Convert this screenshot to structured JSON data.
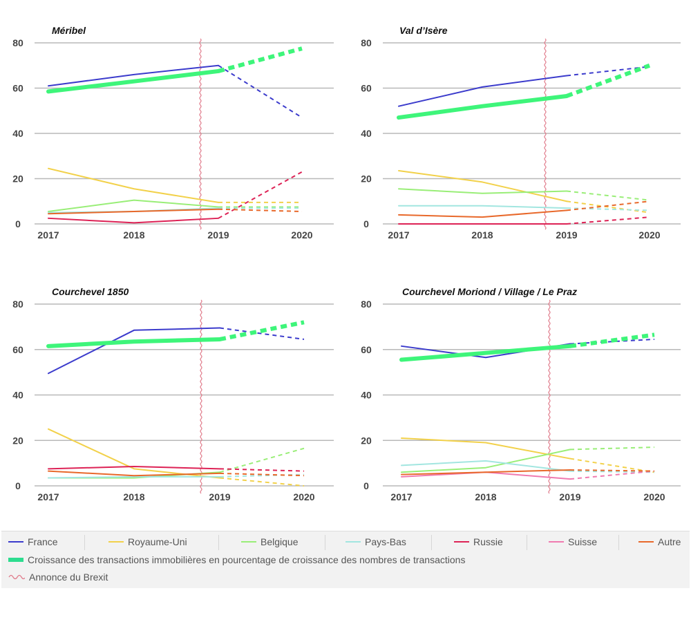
{
  "legend": {
    "series": [
      {
        "label": "France",
        "color": "#3b3bcc"
      },
      {
        "label": "Royaume-Uni",
        "color": "#f2d14a"
      },
      {
        "label": "Belgique",
        "color": "#99ee77"
      },
      {
        "label": "Pays-Bas",
        "color": "#a2e6e0"
      },
      {
        "label": "Russie",
        "color": "#dd2255"
      },
      {
        "label": "Suisse",
        "color": "#f07ab0"
      },
      {
        "label": "Autre",
        "color": "#e8682a"
      }
    ],
    "growth_label": "Croissance des transactions immobilières en pourcentage de croissance des nombres de transactions",
    "growth_color": "#3ef57a",
    "brexit_label": "Annonce du Brexit",
    "brexit_color": "#e07a8a"
  },
  "chart_data": [
    {
      "type": "line",
      "title": "Méribel",
      "x": [
        "2017",
        "2018",
        "2019",
        "2020"
      ],
      "ylim": [
        0,
        80
      ],
      "yticks": [
        0,
        20,
        40,
        60,
        80
      ],
      "grid": true,
      "projected_from": "2019",
      "brexit_marker": "between 2018 and 2019",
      "series": [
        {
          "name": "France",
          "values": [
            61,
            66,
            70,
            47
          ]
        },
        {
          "name": "Royaume-Uni",
          "values": [
            24.5,
            15.5,
            9.5,
            9.5
          ]
        },
        {
          "name": "Belgique",
          "values": [
            5.5,
            10.5,
            7.5,
            7.5
          ]
        },
        {
          "name": "Pays-Bas",
          "values": [
            5,
            5.5,
            7,
            7
          ]
        },
        {
          "name": "Russie",
          "values": [
            2.5,
            0.5,
            2.5,
            23
          ]
        },
        {
          "name": "Autre",
          "values": [
            4.5,
            5.5,
            6.5,
            5.5
          ]
        },
        {
          "name": "Croissance des transactions immobilières en pourcentage de croissance des nombres de transactions",
          "values": [
            58.5,
            63,
            67.5,
            77.5
          ]
        }
      ]
    },
    {
      "type": "line",
      "title": "Val d’Isère",
      "x": [
        "2017",
        "2018",
        "2019",
        "2020"
      ],
      "ylim": [
        0,
        80
      ],
      "yticks": [
        0,
        20,
        40,
        60,
        80
      ],
      "grid": true,
      "projected_from": "2019",
      "brexit_marker": "between 2018 and 2019",
      "series": [
        {
          "name": "France",
          "values": [
            52,
            60.5,
            65.5,
            69.5
          ]
        },
        {
          "name": "Royaume-Uni",
          "values": [
            23.5,
            18.5,
            10,
            5
          ]
        },
        {
          "name": "Belgique",
          "values": [
            15.5,
            13.5,
            14.5,
            10.5
          ]
        },
        {
          "name": "Pays-Bas",
          "values": [
            8,
            8,
            7,
            6
          ]
        },
        {
          "name": "Russie",
          "values": [
            0,
            0,
            0,
            3
          ]
        },
        {
          "name": "Autre",
          "values": [
            4,
            3,
            6,
            10
          ]
        },
        {
          "name": "Croissance des transactions immobilières en pourcentage de croissance des nombres de transactions",
          "values": [
            47,
            52,
            56.5,
            70
          ]
        }
      ]
    },
    {
      "type": "line",
      "title": "Courchevel 1850",
      "x": [
        "2017",
        "2018",
        "2019",
        "2020"
      ],
      "ylim": [
        0,
        80
      ],
      "yticks": [
        0,
        20,
        40,
        60,
        80
      ],
      "grid": true,
      "projected_from": "2019",
      "brexit_marker": "between 2018 and 2019",
      "series": [
        {
          "name": "France",
          "values": [
            49.5,
            68.5,
            69.5,
            64.5
          ]
        },
        {
          "name": "Royaume-Uni",
          "values": [
            25,
            7.5,
            3.5,
            0
          ]
        },
        {
          "name": "Belgique",
          "values": [
            3.5,
            3.5,
            6,
            16.5
          ]
        },
        {
          "name": "Pays-Bas",
          "values": [
            3.5,
            4,
            4,
            5
          ]
        },
        {
          "name": "Russie",
          "values": [
            7.5,
            8.5,
            7.5,
            6.5
          ]
        },
        {
          "name": "Autre",
          "values": [
            6.5,
            4.5,
            5.5,
            4.5
          ]
        },
        {
          "name": "Croissance des transactions immobilières en pourcentage de croissance des nombres de transactions",
          "values": [
            61.5,
            63.5,
            64.5,
            72
          ]
        }
      ]
    },
    {
      "type": "line",
      "title": "Courchevel Moriond / Village / Le Praz",
      "x": [
        "2017",
        "2018",
        "2019",
        "2020"
      ],
      "ylim": [
        0,
        80
      ],
      "yticks": [
        0,
        20,
        40,
        60,
        80
      ],
      "grid": true,
      "projected_from": "2019",
      "brexit_marker": "between 2018 and 2019",
      "series": [
        {
          "name": "France",
          "values": [
            61.5,
            56.5,
            62.5,
            64.5
          ]
        },
        {
          "name": "Royaume-Uni",
          "values": [
            21,
            19,
            12,
            6
          ]
        },
        {
          "name": "Belgique",
          "values": [
            6,
            8,
            16,
            17
          ]
        },
        {
          "name": "Pays-Bas",
          "values": [
            9,
            11,
            6.5,
            6
          ]
        },
        {
          "name": "Suisse",
          "values": [
            4,
            6,
            3,
            6.5
          ]
        },
        {
          "name": "Autre",
          "values": [
            5,
            6,
            7,
            6.5
          ]
        },
        {
          "name": "Croissance des transactions immobilières en pourcentage de croissance des nombres de transactions",
          "values": [
            55.5,
            58.5,
            61.5,
            66.5
          ]
        }
      ]
    }
  ]
}
